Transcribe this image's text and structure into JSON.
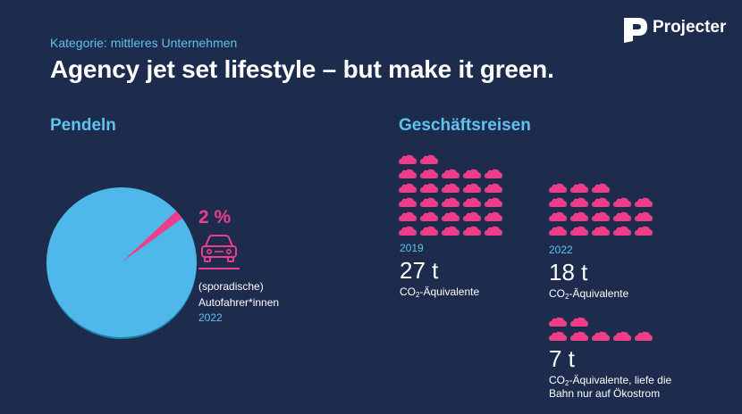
{
  "header": {
    "category": "Kategorie: mittleres Unternehmen",
    "title": "Agency jet set lifestyle – but make it green.",
    "brand": "Projecter"
  },
  "pendeln": {
    "heading": "Pendeln",
    "percent_label": "2 %",
    "share_fraction": 0.02,
    "line1": "(sporadische)",
    "line2": "Autofahrer*innen",
    "year": "2022",
    "icon": "car-icon"
  },
  "geschaeftsreisen": {
    "heading": "Geschäftsreisen",
    "cloud_icon": "cloud-icon",
    "blocks": [
      {
        "year": "2019",
        "value": "27 t",
        "unit_prefix": "CO",
        "unit_sub": "2",
        "unit_suffix": "-Äquivalente",
        "cloud_count": 27
      },
      {
        "year": "2022",
        "value": "18 t",
        "unit_prefix": "CO",
        "unit_sub": "2",
        "unit_suffix": "-Äquivalente",
        "cloud_count": 18
      },
      {
        "year": "",
        "value": "7 t",
        "unit_prefix": "CO",
        "unit_sub": "2",
        "unit_suffix": "-Äquivalente, liefe die",
        "unit_line2": "Bahn nur auf Ökostrom",
        "cloud_count": 7
      }
    ]
  },
  "colors": {
    "background": "#1d2b4d",
    "accent_blue": "#5ec3ee",
    "accent_pink": "#ee3e8b",
    "text": "#ffffff"
  }
}
